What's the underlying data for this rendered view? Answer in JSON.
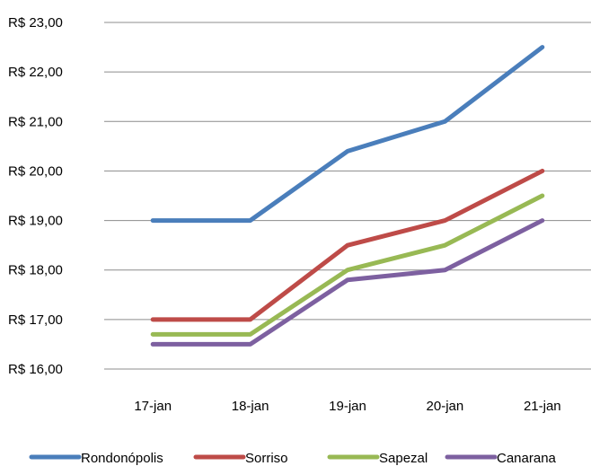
{
  "chart_data": {
    "type": "line",
    "title": "",
    "xlabel": "",
    "ylabel": "",
    "categories": [
      "17-jan",
      "18-jan",
      "19-jan",
      "20-jan",
      "21-jan"
    ],
    "y_ticks": [
      16,
      17,
      18,
      19,
      20,
      21,
      22,
      23
    ],
    "y_tick_labels": [
      "R$ 16,00",
      "R$ 17,00",
      "R$ 18,00",
      "R$ 19,00",
      "R$ 20,00",
      "R$ 21,00",
      "R$ 22,00",
      "R$ 23,00"
    ],
    "ylim": [
      16,
      23
    ],
    "grid": "horizontal",
    "legend_position": "bottom",
    "series": [
      {
        "name": "Rondonópolis",
        "color": "#4A7EBB",
        "values": [
          19.0,
          19.0,
          20.4,
          21.0,
          22.5
        ]
      },
      {
        "name": "Sorriso",
        "color": "#BE4B48",
        "values": [
          17.0,
          17.0,
          18.5,
          19.0,
          20.0
        ]
      },
      {
        "name": "Sapezal",
        "color": "#98B954",
        "values": [
          16.7,
          16.7,
          18.0,
          18.5,
          19.5
        ]
      },
      {
        "name": "Canarana",
        "color": "#7D60A0",
        "values": [
          16.5,
          16.5,
          17.8,
          18.0,
          19.0
        ]
      }
    ]
  }
}
